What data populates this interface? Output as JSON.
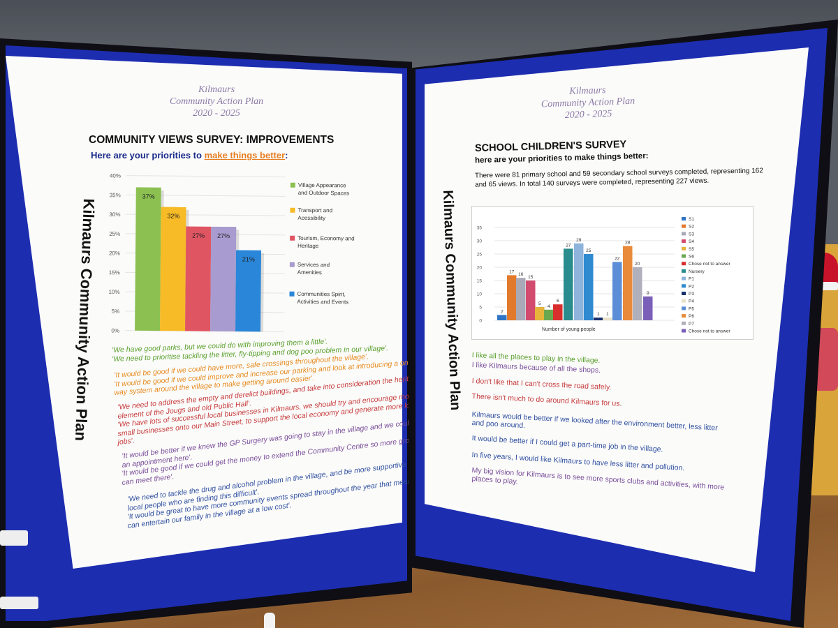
{
  "left_poster": {
    "plan_title": [
      "Kilmaurs",
      "Community Action Plan",
      "2020 - 2025"
    ],
    "heading": "COMMUNITY VIEWS SURVEY: IMPROVEMENTS",
    "sub_prefix": "Here are your priorities to ",
    "sub_highlight": "make things better",
    "sub_suffix": ":",
    "vertical": "Kilmaurs Community Action Plan",
    "quotes": [
      {
        "color": "green",
        "lines": [
          "'We have good parks, but we could do with improving them a little'.",
          "'We need to prioritise tackling the litter, fly-tipping and dog poo problem in our village'."
        ]
      },
      {
        "color": "orange",
        "lines": [
          "'It would be good if we could have more, safe crossings throughout the village'.",
          "'It would be good if we could improve and increase our parking and look at introducing a one-",
          "way system around the village to make getting around easier'."
        ]
      },
      {
        "color": "red",
        "lines": [
          "'We need to address the empty and derelict buildings, and take into consideration the heritage",
          "element of the Jougs and old Public Hall'.",
          "'We have lots of successful local businesses in Kilmaurs, we should try and encourage more",
          "small businesses onto our Main Street, to support the local economy and generate more local",
          "jobs'."
        ]
      },
      {
        "color": "purple",
        "lines": [
          "'It would be better if we knew the GP Surgery was going to stay in the village and we could get",
          "an appointment here'.",
          "'It would be good if we could get the money to extend the Community Centre so more groups",
          "can meet there'."
        ]
      },
      {
        "color": "blue",
        "lines": [
          "'We need to tackle the drug and alcohol problem in the village, and be more supportive of the",
          "local people who are finding this difficult'.",
          "'It would be great to have more community events spread throughout the year that mean we",
          "can entertain our family in the village at a low cost'."
        ]
      }
    ]
  },
  "right_poster": {
    "plan_title": [
      "Kilmaurs",
      "Community Action Plan",
      "2020 - 2025"
    ],
    "heading": "SCHOOL CHILDREN'S SURVEY",
    "sub": "here are your priorities to make things better:",
    "intro": [
      "There were 81 primary school and 59 secondary school surveys completed, representing 162",
      "and 65 views. In total 140 surveys were completed, representing 227 views."
    ],
    "vertical": "Kilmaurs Community Action Plan",
    "statements": [
      {
        "color": "green",
        "lines": [
          "I like all the places to play in the village."
        ]
      },
      {
        "color": "purple",
        "lines": [
          "I like Kilmaurs because of all the shops."
        ]
      },
      {
        "color": "red",
        "lines": [
          "I don't like that I can't cross the road safely."
        ]
      },
      {
        "color": "red",
        "lines": [
          "There isn't much to do around Kilmaurs for us."
        ]
      },
      {
        "color": "blue",
        "lines": [
          "Kilmaurs would be better if we looked after the environment better, less litter",
          "and poo around."
        ]
      },
      {
        "color": "blue",
        "lines": [
          "It would be better if I could get a part-time job in the village."
        ]
      },
      {
        "color": "blue",
        "lines": [
          "In five years, I would like Kilmaurs to have less litter and pollution."
        ]
      },
      {
        "color": "purple",
        "lines": [
          "My big vision for Kilmaurs is to see more sports clubs and activities, with more",
          "places to play."
        ]
      }
    ]
  },
  "colors": {
    "green": "#5aa02c",
    "orange": "#e68a1c",
    "red": "#c63b3b",
    "purple": "#7a4e99",
    "blue": "#2f4f9f"
  },
  "chart_data": [
    {
      "type": "bar",
      "categories": [
        "Village Appearance and Outdoor Spaces",
        "Transport and Acessibility",
        "Tourism, Economy and Heritage",
        "Services and Amenities",
        "Communities Spirit, Activities and Events"
      ],
      "values": [
        37,
        32,
        27,
        27,
        21
      ],
      "data_labels": [
        "37%",
        "32%",
        "27%",
        "27%",
        "21%"
      ],
      "colors": [
        "#8cc152",
        "#f6bb26",
        "#e05562",
        "#a89bcf",
        "#2a86d8"
      ],
      "yticks": [
        "0%",
        "5%",
        "10%",
        "15%",
        "20%",
        "25%",
        "30%",
        "35%",
        "40%"
      ],
      "ylim": [
        0,
        40
      ],
      "legend": "right",
      "grid": true,
      "title": "",
      "xlabel": "",
      "ylabel": ""
    },
    {
      "type": "bar",
      "categories": [
        "S1",
        "S2",
        "S3",
        "S4",
        "S5",
        "S6",
        "Chose not to answer",
        "Nursery",
        "P1",
        "P2",
        "P3",
        "P4",
        "P5",
        "P6",
        "P7",
        "Chose not to answer"
      ],
      "values": [
        2,
        17,
        16,
        15,
        5,
        4,
        6,
        27,
        29,
        25,
        1,
        1,
        22,
        28,
        20,
        9
      ],
      "colors": [
        "#2f75c6",
        "#e27a2d",
        "#a9a9b8",
        "#d24a6e",
        "#e6b43a",
        "#6aa84f",
        "#d92e2e",
        "#2a8c8c",
        "#8fb4dc",
        "#2f8ad0",
        "#1a2f6e",
        "#e8e0c8",
        "#5b8ed6",
        "#e88a3a",
        "#b0b0bc",
        "#7a5fb8"
      ],
      "yticks": [
        "0",
        "5",
        "10",
        "15",
        "20",
        "25",
        "30",
        "35"
      ],
      "ylim": [
        0,
        35
      ],
      "xlabel": "Number of young people",
      "legend": "right",
      "grid": true,
      "title": "",
      "ylabel": ""
    }
  ]
}
